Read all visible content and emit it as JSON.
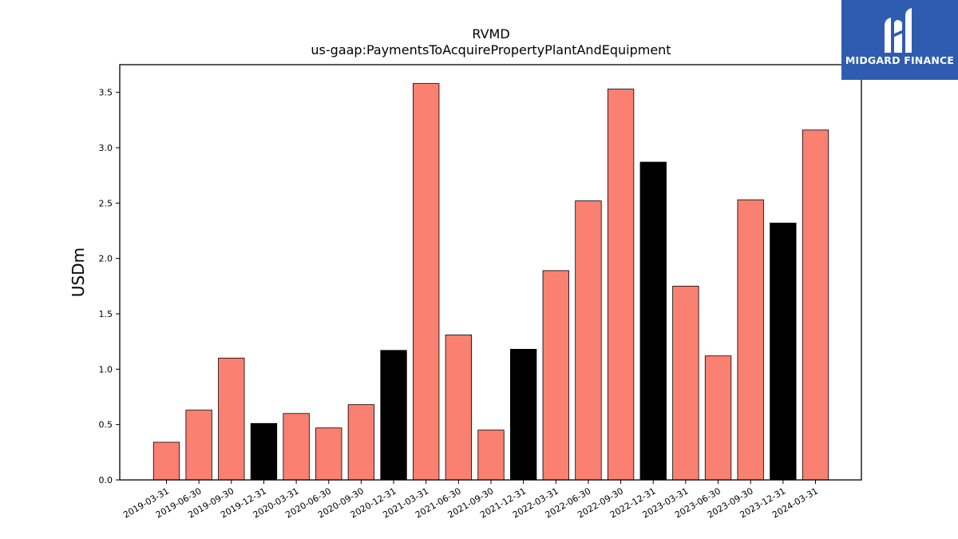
{
  "chart_data": {
    "type": "bar",
    "title": "RVMD",
    "subtitle": "us-gaap:PaymentsToAcquirePropertyPlantAndEquipment",
    "xlabel": "",
    "ylabel": "USDm",
    "ylim": [
      0,
      3.75
    ],
    "yticks": [
      "0.0",
      "0.5",
      "1.0",
      "1.5",
      "2.0",
      "2.5",
      "3.0",
      "3.5"
    ],
    "grid": false,
    "categories": [
      "2019-03-31",
      "2019-06-30",
      "2019-09-30",
      "2019-12-31",
      "2020-03-31",
      "2020-06-30",
      "2020-09-30",
      "2020-12-31",
      "2021-03-31",
      "2021-06-30",
      "2021-09-30",
      "2021-12-31",
      "2022-03-31",
      "2022-06-30",
      "2022-09-30",
      "2022-12-31",
      "2023-03-31",
      "2023-06-30",
      "2023-09-30",
      "2023-12-31",
      "2024-03-31"
    ],
    "values": [
      0.34,
      0.63,
      1.1,
      0.51,
      0.6,
      0.47,
      0.68,
      1.17,
      3.58,
      1.31,
      0.45,
      1.18,
      1.89,
      2.52,
      3.53,
      2.87,
      1.75,
      1.12,
      2.53,
      2.32,
      3.16
    ],
    "bar_colors": [
      "#fa8072",
      "#fa8072",
      "#fa8072",
      "#000000",
      "#fa8072",
      "#fa8072",
      "#fa8072",
      "#000000",
      "#fa8072",
      "#fa8072",
      "#fa8072",
      "#000000",
      "#fa8072",
      "#fa8072",
      "#fa8072",
      "#000000",
      "#fa8072",
      "#fa8072",
      "#fa8072",
      "#000000",
      "#fa8072"
    ]
  },
  "logo": {
    "text": "MIDGARD FINANCE",
    "background": "#2f5cb0"
  }
}
